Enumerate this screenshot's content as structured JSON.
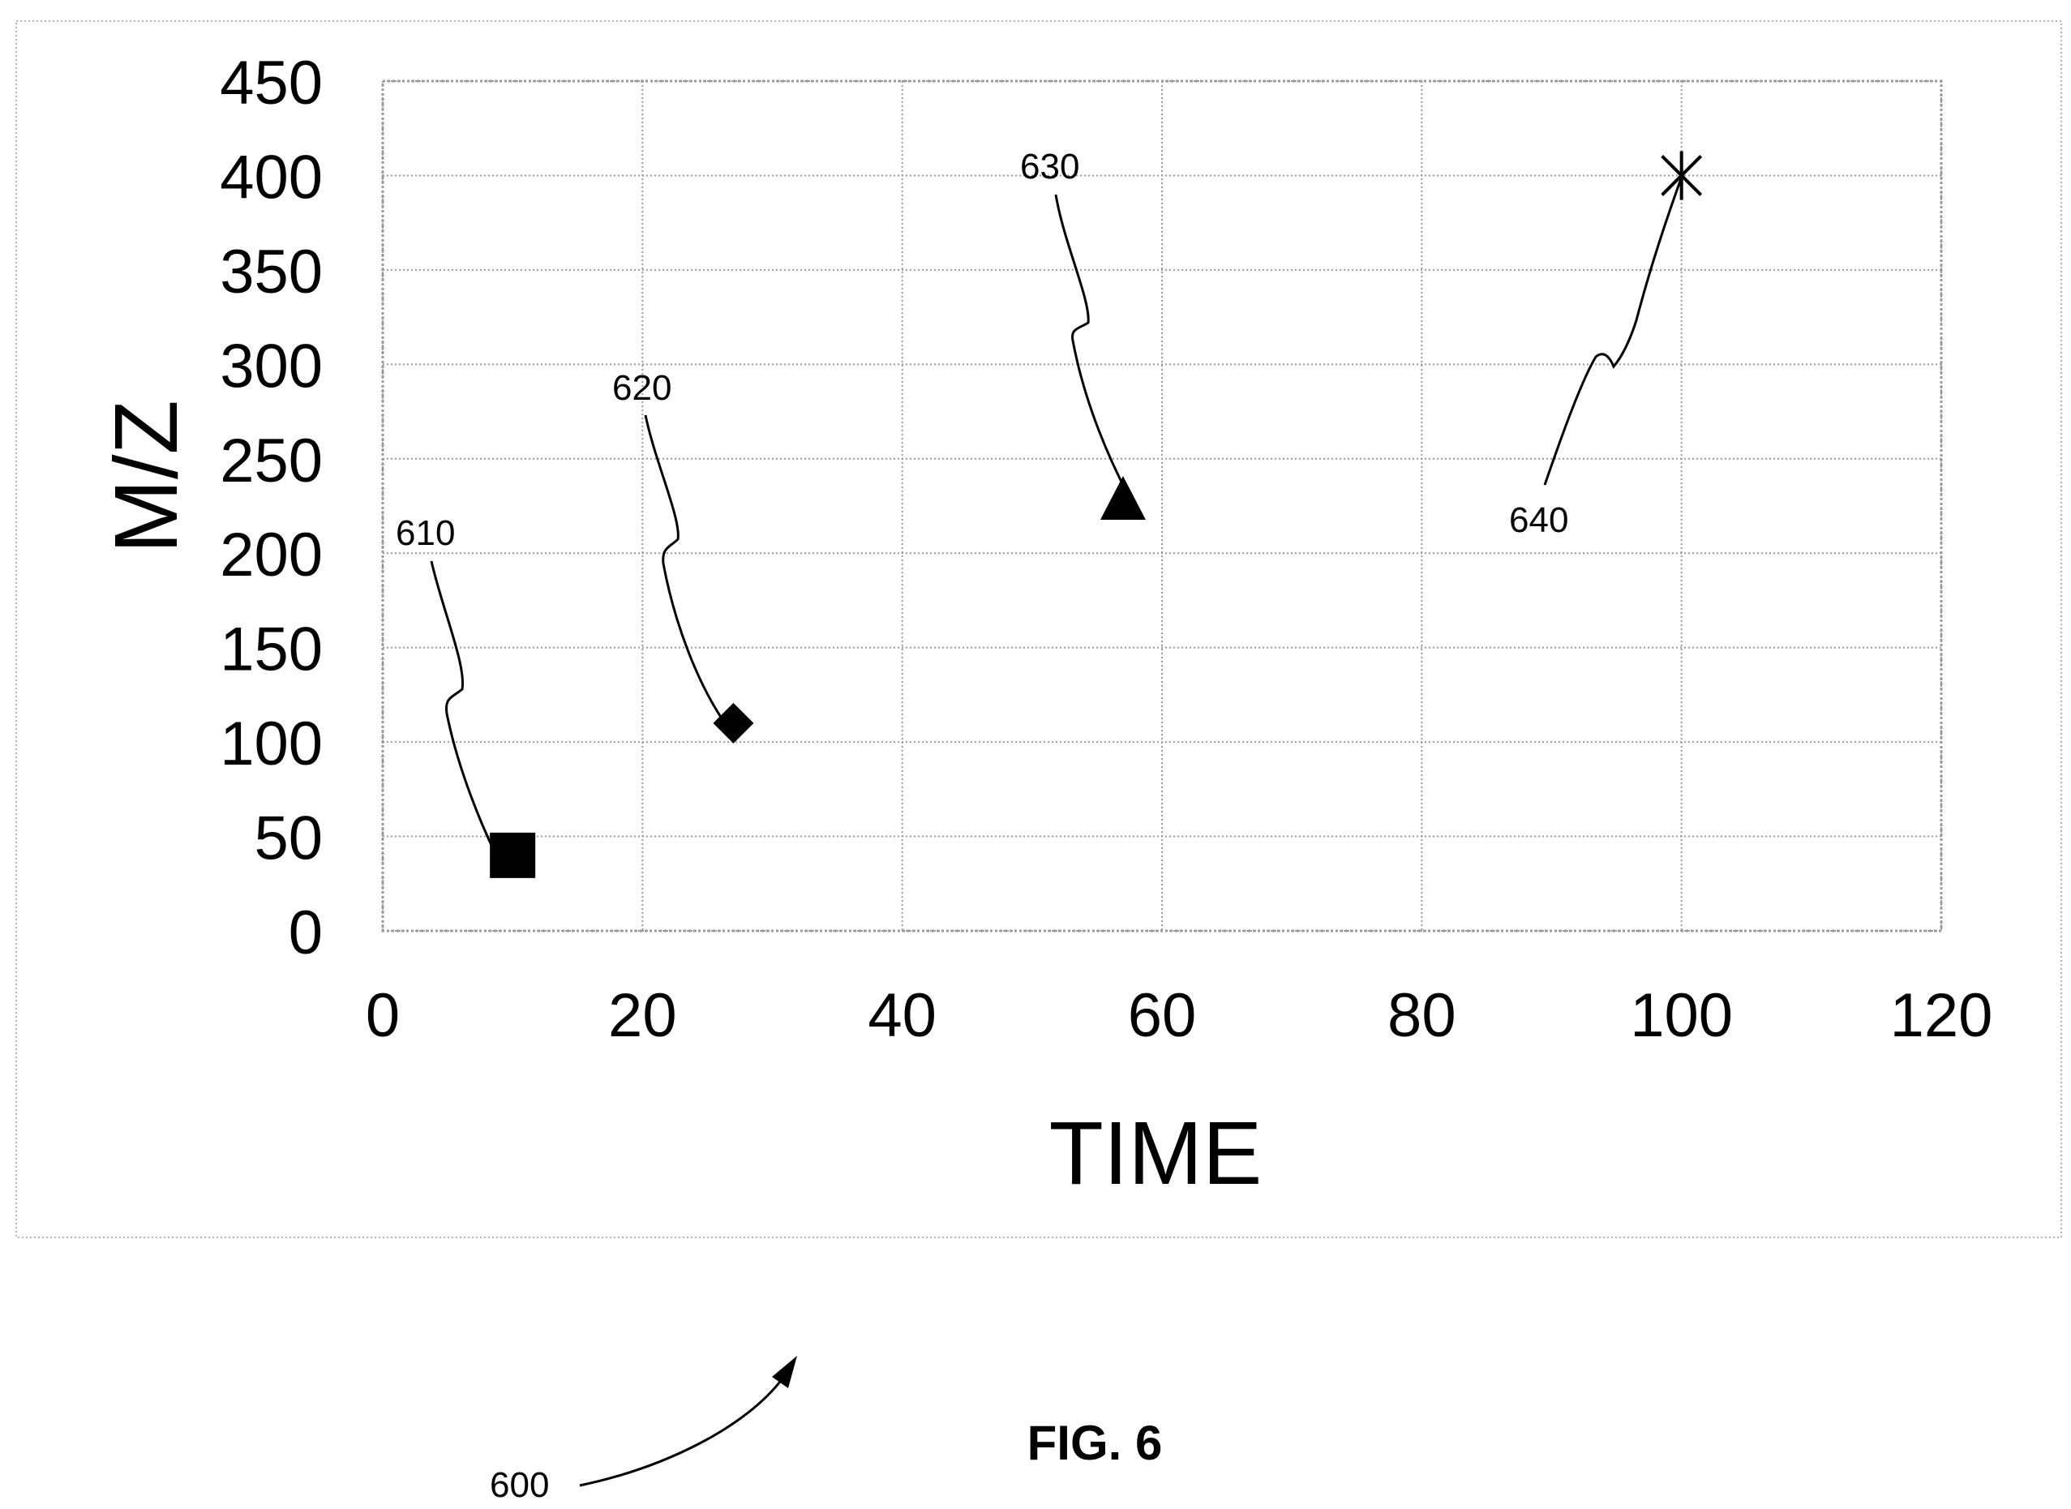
{
  "chart_data": {
    "type": "scatter",
    "title": "",
    "xlabel": "TIME",
    "ylabel": "M/Z",
    "xlim": [
      0,
      120
    ],
    "ylim": [
      0,
      450
    ],
    "x_ticks": [
      0,
      20,
      40,
      60,
      80,
      100,
      120
    ],
    "y_ticks": [
      0,
      50,
      100,
      150,
      200,
      250,
      300,
      350,
      400,
      450
    ],
    "grid": true,
    "legend": "none",
    "points": [
      {
        "x": 10,
        "y": 40,
        "marker": "square",
        "label": "610"
      },
      {
        "x": 27,
        "y": 110,
        "marker": "diamond",
        "label": "620"
      },
      {
        "x": 57,
        "y": 228,
        "marker": "triangle",
        "label": "630"
      },
      {
        "x": 100,
        "y": 400,
        "marker": "star",
        "label": "640"
      }
    ]
  },
  "figure": {
    "label": "FIG. 6",
    "reference": "600"
  },
  "colors": {
    "ink": "#000000",
    "grid": "#9a9a9a",
    "frame": "#b5b5b5"
  }
}
